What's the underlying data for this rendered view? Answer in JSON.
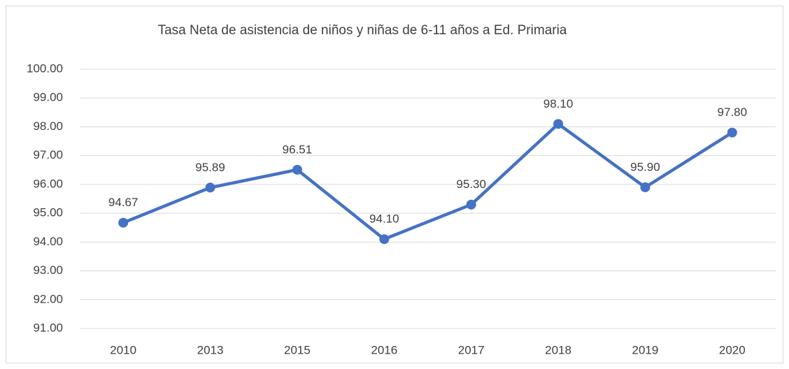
{
  "chart_data": {
    "type": "line",
    "title": "Tasa Neta de asistencia de niños y niñas de 6-11 años a Ed. Primaria",
    "categories": [
      "2010",
      "2013",
      "2015",
      "2016",
      "2017",
      "2018",
      "2019",
      "2020"
    ],
    "series": [
      {
        "name": "Tasa Neta",
        "color": "#4472c4",
        "values": [
          94.67,
          95.89,
          96.51,
          94.1,
          95.3,
          98.1,
          95.9,
          97.8
        ],
        "value_labels": [
          "94.67",
          "95.89",
          "96.51",
          "94.10",
          "95.30",
          "98.10",
          "95.90",
          "97.80"
        ]
      }
    ],
    "ylim": [
      91,
      100
    ],
    "yticks": [
      {
        "value": 91,
        "label": "91.00"
      },
      {
        "value": 92,
        "label": "92.00"
      },
      {
        "value": 93,
        "label": "93.00"
      },
      {
        "value": 94,
        "label": "94.00"
      },
      {
        "value": 95,
        "label": "95.00"
      },
      {
        "value": 96,
        "label": "96.00"
      },
      {
        "value": 97,
        "label": "97.00"
      },
      {
        "value": 98,
        "label": "98.00"
      },
      {
        "value": 99,
        "label": "99.00"
      },
      {
        "value": 100,
        "label": "100.00"
      }
    ],
    "grid": true
  }
}
